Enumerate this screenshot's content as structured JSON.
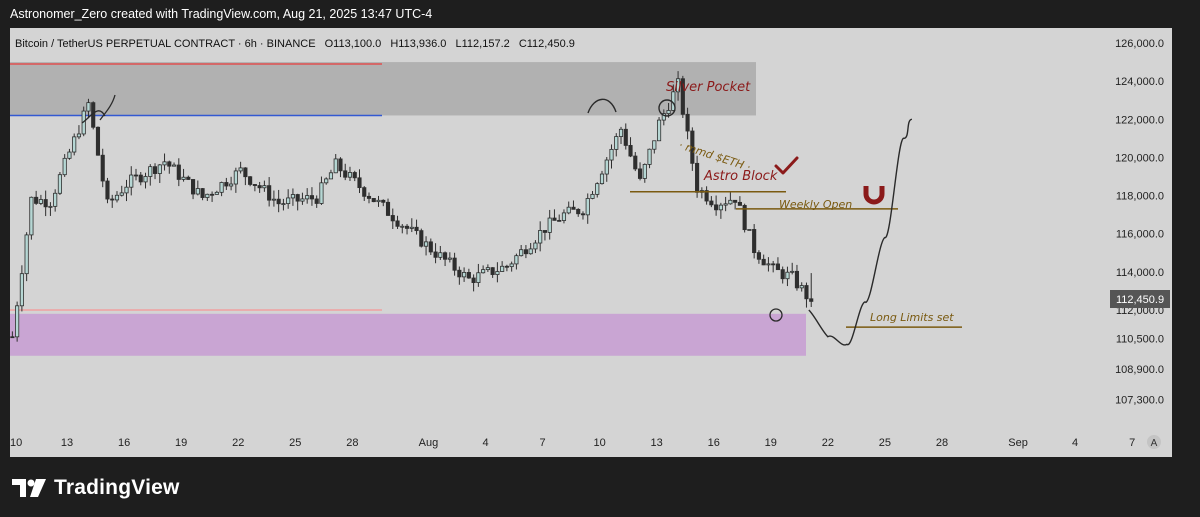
{
  "header": {
    "credit": "Astronomer_Zero created with TradingView.com, Aug 21, 2025 13:47 UTC-4"
  },
  "legend": {
    "symbol": "Bitcoin / TetherUS PERPETUAL CONTRACT · 6h · BINANCE",
    "open": "O113,100.0",
    "high": "H113,936.0",
    "low": "L112,157.2",
    "close": "C112,450.9"
  },
  "price_axis": {
    "ticks": [
      "126,000.0",
      "124,000.0",
      "122,000.0",
      "120,000.0",
      "118,000.0",
      "116,000.0",
      "114,000.0",
      "112,000.0",
      "110,500.0",
      "108,900.0",
      "107,300.0"
    ],
    "last_price": "112,450.9"
  },
  "time_axis": {
    "ticks": [
      "10",
      "13",
      "16",
      "19",
      "22",
      "25",
      "28",
      "Aug",
      "4",
      "7",
      "10",
      "13",
      "16",
      "19",
      "22",
      "25",
      "28",
      "Sep",
      "4",
      "7"
    ],
    "auto_label": "A"
  },
  "annotations": {
    "silver_pocket": "Silver Pocket",
    "mmd_eth": "· mmd $ETH ·",
    "astro_block": "Astro Block",
    "weekly_open": "Weekly Open",
    "long_limits": "Long Limits set"
  },
  "brand": {
    "name": "TradingView"
  },
  "colors": {
    "background": "#d4d4d4",
    "up_candle": "#b6d7d4",
    "down_candle": "#2e2e2e",
    "zone_gray": "#b1b1b1",
    "zone_purple": "#c9a5d3",
    "red_line": "#e05050",
    "blue_line": "#3359d2",
    "annotation_red": "#8b1a1a",
    "annotation_gold": "#7a5a10"
  },
  "chart_data": {
    "type": "candlestick",
    "title": "Bitcoin / TetherUS PERPETUAL CONTRACT · 6h · BINANCE",
    "timeframe": "6h",
    "xlabel": "",
    "ylabel": "",
    "ylim": [
      106600,
      126500
    ],
    "x_range": [
      "Jul 10",
      "Sep 8"
    ],
    "last_ohlc": {
      "open": 113100.0,
      "high": 113936.0,
      "low": 112157.2,
      "close": 112450.9
    },
    "anchors": [
      {
        "date": "Jul 10",
        "price": 110600
      },
      {
        "date": "Jul 11",
        "price": 117800
      },
      {
        "date": "Jul 12",
        "price": 117700
      },
      {
        "date": "Jul 14",
        "price": 122800
      },
      {
        "date": "Jul 15",
        "price": 117500
      },
      {
        "date": "Jul 16",
        "price": 118600
      },
      {
        "date": "Jul 18",
        "price": 119800
      },
      {
        "date": "Jul 20",
        "price": 117900
      },
      {
        "date": "Jul 22",
        "price": 119300
      },
      {
        "date": "Jul 24",
        "price": 117600
      },
      {
        "date": "Jul 26",
        "price": 117900
      },
      {
        "date": "Jul 27",
        "price": 119600
      },
      {
        "date": "Jul 29",
        "price": 117800
      },
      {
        "date": "Aug 1",
        "price": 115200
      },
      {
        "date": "Aug 3",
        "price": 113600
      },
      {
        "date": "Aug 5",
        "price": 114300
      },
      {
        "date": "Aug 7",
        "price": 116300
      },
      {
        "date": "Aug 8",
        "price": 117000
      },
      {
        "date": "Aug 9",
        "price": 117300
      },
      {
        "date": "Aug 10",
        "price": 119400
      },
      {
        "date": "Aug 11",
        "price": 121500
      },
      {
        "date": "Aug 12",
        "price": 118700
      },
      {
        "date": "Aug 13",
        "price": 121800
      },
      {
        "date": "Aug 14",
        "price": 123800
      },
      {
        "date": "Aug 15",
        "price": 118400
      },
      {
        "date": "Aug 16",
        "price": 117600
      },
      {
        "date": "Aug 17",
        "price": 117900
      },
      {
        "date": "Aug 18",
        "price": 115200
      },
      {
        "date": "Aug 19",
        "price": 114100
      },
      {
        "date": "Aug 20",
        "price": 113700
      },
      {
        "date": "Aug 21",
        "price": 112450.9
      }
    ],
    "drawn_path": [
      {
        "date": "Aug 21",
        "price": 112000
      },
      {
        "date": "Aug 22",
        "price": 110600
      },
      {
        "date": "Aug 23",
        "price": 110200
      },
      {
        "date": "Aug 24",
        "price": 112400
      },
      {
        "date": "Aug 25",
        "price": 115800
      },
      {
        "date": "Aug 26",
        "price": 121000
      },
      {
        "date": "Aug 26",
        "price": 122000
      }
    ],
    "zones": [
      {
        "name": "Silver Pocket",
        "from": 122200,
        "to": 125000,
        "color": "#b1b1b1"
      },
      {
        "name": "",
        "from": 109600,
        "to": 111800,
        "color": "#c9a5d3"
      }
    ],
    "levels": [
      {
        "label": "",
        "price": 124900,
        "color": "#e05050"
      },
      {
        "label": "",
        "price": 122200,
        "color": "#3359d2"
      },
      {
        "label": "",
        "price": 112000,
        "color": "#f0a0a0"
      },
      {
        "label": "Astro Block",
        "price": 118200,
        "color": "#7a5a10"
      },
      {
        "label": "Weekly Open",
        "price": 117300,
        "color": "#7a5a10"
      },
      {
        "label": "Long Limits set",
        "price": 111100,
        "color": "#7a5a10"
      }
    ],
    "grid": false,
    "legend_position": "top-left"
  }
}
